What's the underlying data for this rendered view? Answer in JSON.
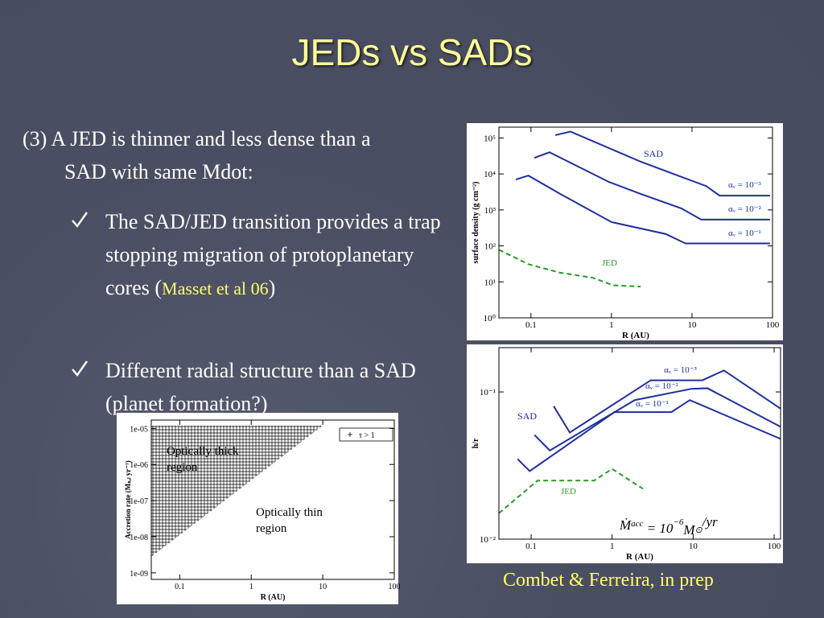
{
  "slide": {
    "title": "JEDs vs SADs",
    "intro": "(3) A JED is thinner and less dense than a SAD with same Mdot:",
    "bullets": [
      {
        "parts": [
          "The SAD/JED transition provides a trap stopping migration of protoplanetary cores  (",
          "Masset et al 06",
          ")"
        ]
      },
      {
        "parts": [
          "Different radial structure than a SAD (planet formation?)"
        ]
      }
    ],
    "credit": "Combet & Ferreira, in prep"
  },
  "chart_data": [
    {
      "type": "line",
      "x_label": "R (AU)",
      "y_label": "surface density (g cm⁻²)",
      "log_x": true,
      "log_y": true,
      "xlim": [
        0.04,
        100
      ],
      "ylim": [
        1,
        200000
      ],
      "xticks": [
        0.1,
        1,
        10,
        100
      ],
      "yticks": [
        {
          "value": 1,
          "label": "10⁰"
        },
        {
          "value": 10,
          "label": "10¹"
        },
        {
          "value": 100,
          "label": "10²"
        },
        {
          "value": 1000,
          "label": "10³"
        },
        {
          "value": 10000,
          "label": "10⁴"
        },
        {
          "value": 100000,
          "label": "10⁵"
        }
      ],
      "annotations": [
        "SAD"
      ],
      "series": [
        {
          "name": "αᵥ = 10⁻³",
          "color": "#1e2f9e",
          "dashed": false,
          "x": [
            0.2,
            0.31,
            2.3,
            5.9,
            15,
            22,
            93
          ],
          "values": [
            120000,
            150000,
            22000,
            10000,
            4600,
            2500,
            2500
          ]
        },
        {
          "name": "αᵥ = 10⁻²",
          "color": "#1e2f9e",
          "dashed": false,
          "x": [
            0.11,
            0.17,
            0.93,
            2.3,
            7.4,
            13,
            93
          ],
          "values": [
            28000,
            40000,
            6000,
            2800,
            1100,
            540,
            540
          ]
        },
        {
          "name": "αᵥ = 10⁻¹",
          "color": "#1e2f9e",
          "dashed": false,
          "x": [
            0.065,
            0.093,
            0.23,
            1.0,
            4.7,
            8.3,
            93
          ],
          "values": [
            7000,
            9000,
            2800,
            460,
            215,
            117,
            117
          ]
        },
        {
          "name": "JED",
          "color": "#2a9a2a",
          "dashed": true,
          "x": [
            0.04,
            0.093,
            0.23,
            0.59,
            1.05,
            2.3
          ],
          "values": [
            78,
            31,
            18,
            13,
            8,
            7.4
          ]
        }
      ]
    },
    {
      "type": "line",
      "x_label": "R (AU)",
      "y_label": "h/r",
      "log_x": true,
      "log_y": true,
      "xlim": [
        0.04,
        120
      ],
      "ylim": [
        0.01,
        0.2
      ],
      "xticks": [
        0.1,
        1,
        10,
        100
      ],
      "yticks": [
        {
          "value": 0.01,
          "label": "10⁻²"
        },
        {
          "value": 0.1,
          "label": "10⁻¹"
        }
      ],
      "annotations": [
        "SAD"
      ],
      "formula": [
        "Ṁ",
        "acc",
        " = 10",
        "−6",
        "M",
        "⊙",
        "/yr"
      ],
      "series": [
        {
          "name": "αᵥ = 10⁻³",
          "color": "#1e2f9e",
          "dashed": false,
          "x": [
            0.19,
            0.3,
            3.0,
            13,
            24,
            120
          ],
          "values": [
            0.08,
            0.053,
            0.12,
            0.12,
            0.14,
            0.077
          ]
        },
        {
          "name": "αᵥ = 10⁻²",
          "color": "#1e2f9e",
          "dashed": false,
          "x": [
            0.11,
            0.17,
            1.9,
            9.5,
            15,
            120
          ],
          "values": [
            0.051,
            0.04,
            0.088,
            0.105,
            0.106,
            0.058
          ]
        },
        {
          "name": "αᵥ = 10⁻¹",
          "color": "#1e2f9e",
          "dashed": false,
          "x": [
            0.068,
            0.096,
            1.07,
            5.4,
            9.1,
            120
          ],
          "values": [
            0.035,
            0.029,
            0.073,
            0.073,
            0.088,
            0.048
          ]
        },
        {
          "name": "JED",
          "color": "#2a9a2a",
          "dashed": true,
          "x": [
            0.04,
            0.12,
            0.6,
            1.0,
            2.4
          ],
          "values": [
            0.015,
            0.025,
            0.025,
            0.03,
            0.022
          ]
        }
      ]
    },
    {
      "type": "region",
      "x_label": "R (AU)",
      "y_label": "Accretion rate  (Mₛₒₗ yr⁻¹)",
      "log_x": true,
      "log_y": true,
      "xlim": [
        0.04,
        100
      ],
      "ylim": [
        6.6e-10,
        1.7e-05
      ],
      "xticks": [
        0.1,
        1,
        10,
        100
      ],
      "yticks": [
        {
          "value": 1e-09,
          "label": "1e-09"
        },
        {
          "value": 1e-08,
          "label": "1e-08"
        },
        {
          "value": 1e-07,
          "label": "1e-07"
        },
        {
          "value": 1e-06,
          "label": "1e-06"
        },
        {
          "value": 1e-05,
          "label": "1e-05"
        }
      ],
      "legend": "upper right",
      "annotations": [
        "Optically thick region",
        "Optically thin region"
      ],
      "series": [
        {
          "name": "τ > 1",
          "color": "#000000",
          "x": [
            0.04,
            0.04,
            10
          ],
          "values": [
            1.2e-05,
            2.8e-09,
            1.2e-05
          ]
        }
      ]
    }
  ]
}
